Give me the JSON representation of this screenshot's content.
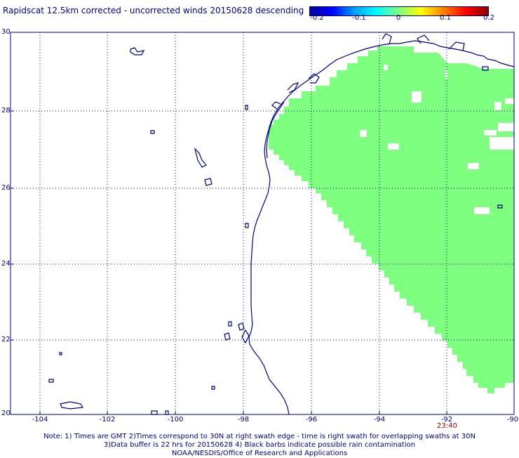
{
  "title": "Rapidscat 12.5km corrected - uncorrected winds 20150628 descending",
  "colorbar": {
    "ticks": [
      "-0.2",
      "-0.1",
      "0",
      "0.1",
      "0.2"
    ],
    "colors": [
      "#0000a0",
      "#0000ff",
      "#00a0ff",
      "#00ffff",
      "#80ff80",
      "#ffff00",
      "#ff8000",
      "#ff0000",
      "#8b0000"
    ]
  },
  "axes": {
    "y_ticks": [
      "30",
      "28",
      "26",
      "24",
      "22",
      "20"
    ],
    "x_ticks": [
      "-104",
      "-102",
      "-100",
      "-98",
      "-96",
      "-94",
      "-92",
      "-90"
    ]
  },
  "time_label": "23:40",
  "notes": [
    "Note: 1) Times are GMT 2)Times correspond to 30N at right swath edge - time is right swath for overlapping swaths at 30N",
    "3)Data buffer is 22 hrs for 20150628 4) Black barbs indicate possible rain contamination",
    "NOAA/NESDIS/Office of Research and Applications"
  ],
  "colors": {
    "swath": "#7fff80",
    "coast": "#000080",
    "grid": "#000080"
  }
}
